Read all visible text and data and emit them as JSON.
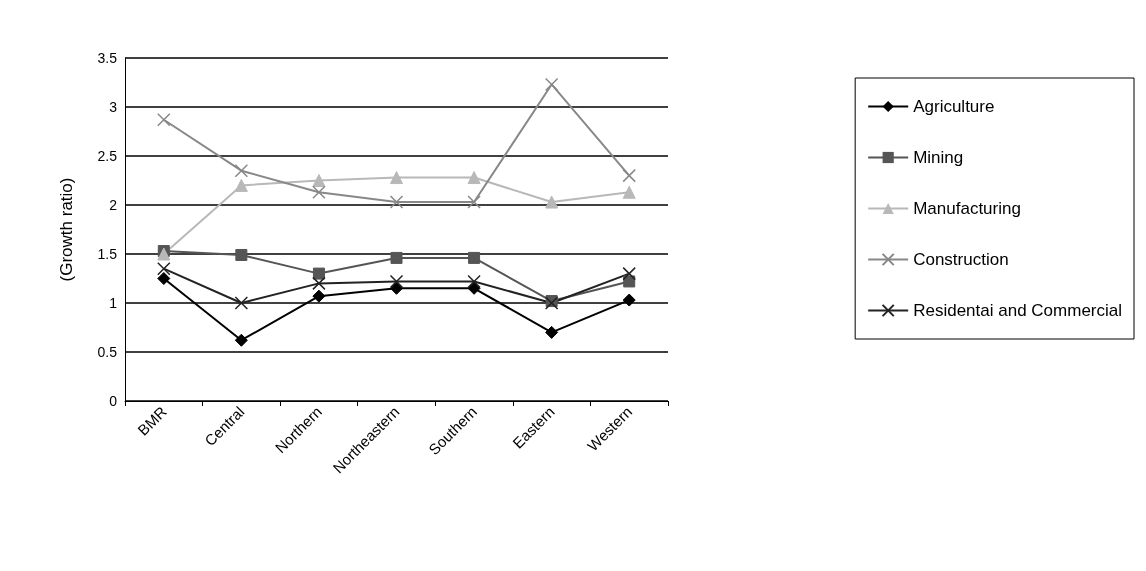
{
  "chart_data": {
    "type": "line",
    "ylabel": "(Growth ratio)",
    "categories": [
      "BMR",
      "Central",
      "Northern",
      "Northeastern",
      "Southern",
      "Eastern",
      "Western"
    ],
    "ylim": [
      0,
      3.5
    ],
    "yticks": [
      0,
      0.5,
      1,
      1.5,
      2,
      2.5,
      3,
      3.5
    ],
    "grid": "y",
    "legend": "right",
    "series": [
      {
        "name": "Agriculture",
        "color": "#000000",
        "marker": "diamond",
        "values": [
          1.25,
          0.62,
          1.07,
          1.15,
          1.15,
          0.7,
          1.03
        ]
      },
      {
        "name": "Mining",
        "color": "#555555",
        "marker": "square",
        "values": [
          1.53,
          1.49,
          1.3,
          1.46,
          1.46,
          1.02,
          1.22
        ]
      },
      {
        "name": "Manufacturing",
        "color": "#b8b8b8",
        "marker": "triangle",
        "values": [
          1.5,
          2.2,
          2.25,
          2.28,
          2.28,
          2.03,
          2.13
        ]
      },
      {
        "name": "Construction",
        "color": "#888888",
        "marker": "cross",
        "values": [
          2.87,
          2.35,
          2.13,
          2.03,
          2.03,
          3.23,
          2.3
        ]
      },
      {
        "name": "Residentai and Commercial",
        "color": "#222222",
        "marker": "cross",
        "values": [
          1.35,
          1.0,
          1.2,
          1.22,
          1.22,
          1.0,
          1.3
        ]
      }
    ]
  }
}
